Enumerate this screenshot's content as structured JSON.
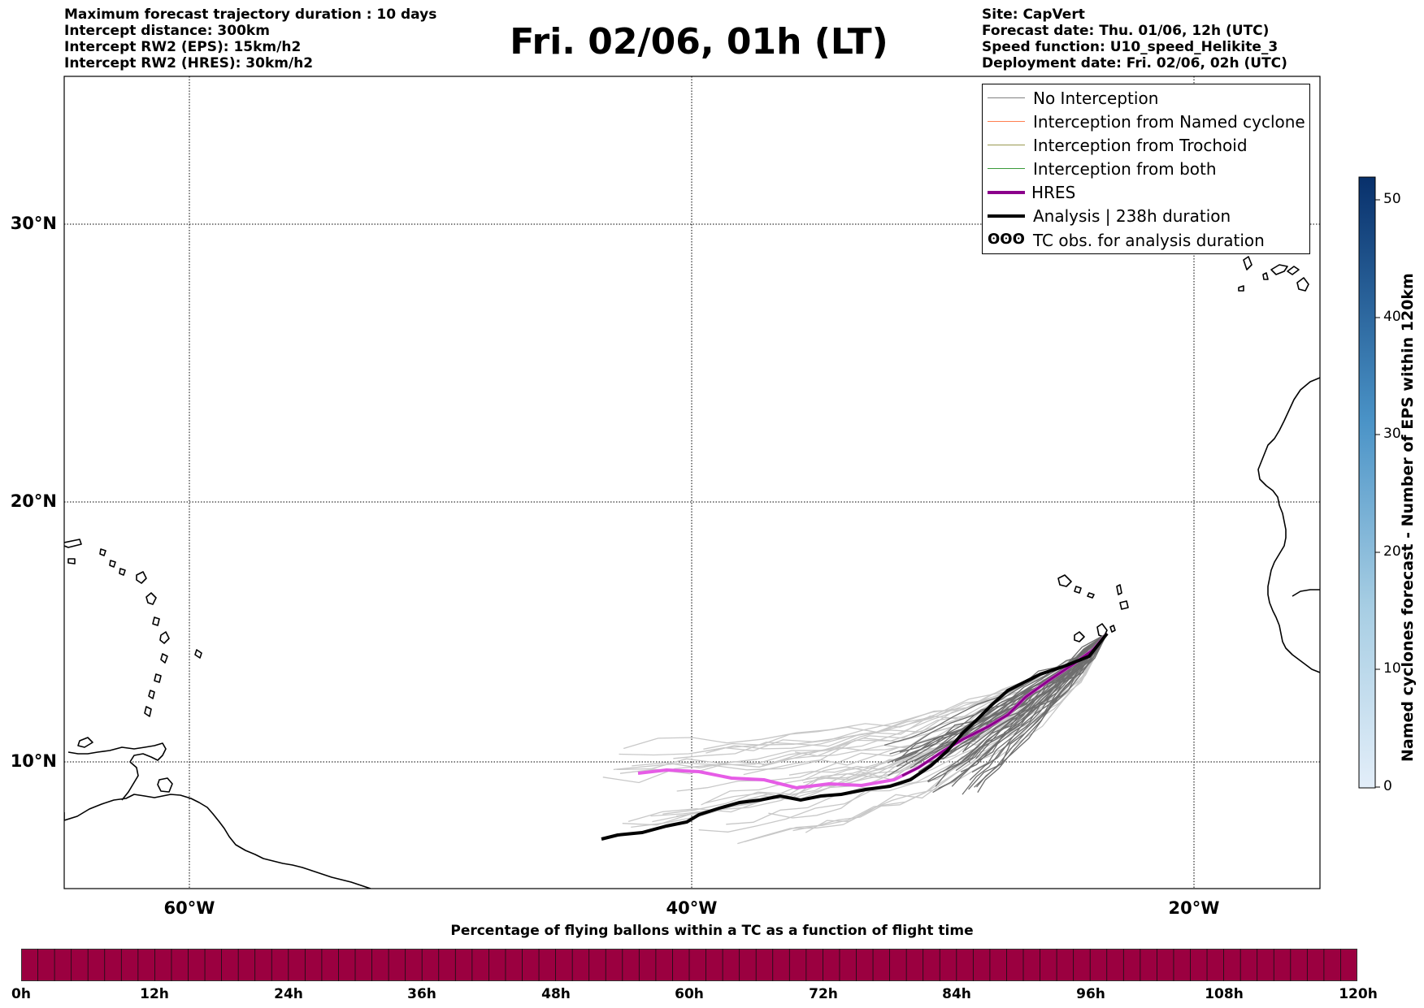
{
  "header_left": [
    "Maximum forecast trajectory duration : 10 days",
    "Intercept distance: 300km",
    "Intercept RW2 (EPS):  15km/h2",
    "Intercept RW2 (HRES): 30km/h2"
  ],
  "title": "Fri. 02/06, 01h (LT)",
  "header_right": [
    "Site: CapVert",
    "Forecast date: Thu. 01/06, 12h (UTC)",
    "Speed function: U10_speed_Helikite_3",
    "Deployment date: Fri. 02/06, 02h (UTC)"
  ],
  "map": {
    "lat_labels": [
      "30°N",
      "20°N",
      "10°N"
    ],
    "lon_labels": [
      "60°W",
      "40°W",
      "20°W"
    ],
    "lon_range": [
      -65,
      -15
    ],
    "lat_range": [
      5,
      35
    ]
  },
  "legend": [
    {
      "label": "No Interception",
      "color": "#808080"
    },
    {
      "label": "Interception from Named cyclone",
      "color": "#ff7f50"
    },
    {
      "label": "Interception from Trochoid",
      "color": "#999950"
    },
    {
      "label": "Interception from both",
      "color": "#3a9a3a"
    },
    {
      "label": "HRES",
      "color": "#8b008b"
    },
    {
      "label": "Analysis | 238h duration",
      "color": "#000000"
    },
    {
      "label": "TC obs. for analysis duration",
      "symbol": "ʘʘʘ"
    }
  ],
  "right_colorbar": {
    "title": "Named cyclones forecast - Number of EPS within 120km",
    "ticks": [
      "0",
      "10",
      "20",
      "30",
      "40",
      "50"
    ],
    "range": [
      0,
      52
    ],
    "colors": [
      "#e3eef9",
      "#08306b"
    ]
  },
  "bottom_colorbar": {
    "title": "Percentage of flying ballons within a TC as a function of flight time",
    "ticks": [
      "0h",
      "12h",
      "24h",
      "36h",
      "48h",
      "60h",
      "72h",
      "84h",
      "96h",
      "108h",
      "120h"
    ],
    "color": "#9b0040"
  }
}
